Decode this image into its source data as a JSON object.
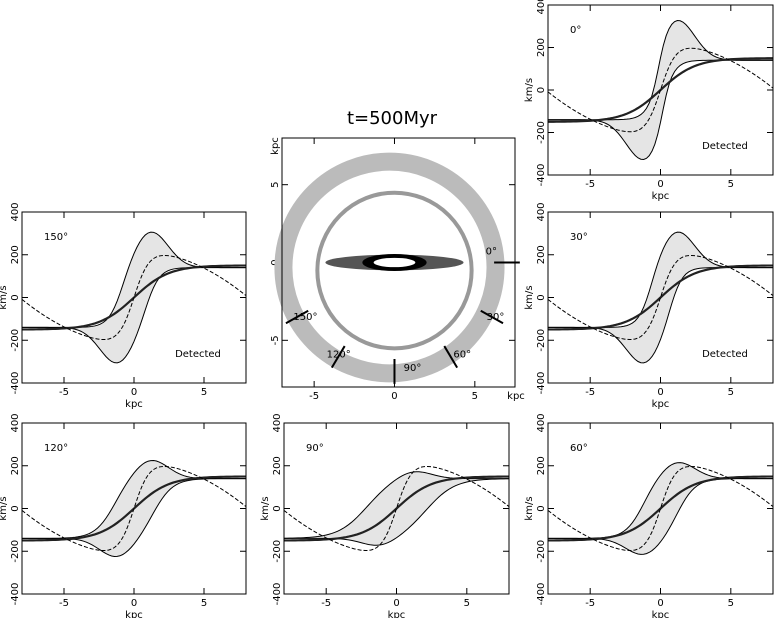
{
  "title": "t=500Myr",
  "chart_data": [
    {
      "type": "pv",
      "label": "0°",
      "note": "Detected",
      "xlabel": "kpc",
      "ylabel": "km/s",
      "xlim": [
        -8,
        8
      ],
      "ylim": [
        -400,
        400
      ],
      "xticks": [
        -5,
        0,
        5
      ],
      "yticks": [
        -400,
        -200,
        0,
        200,
        400
      ]
    },
    {
      "type": "pv",
      "label": "150°",
      "note": "Detected",
      "xlabel": "kpc",
      "ylabel": "km/s",
      "xlim": [
        -8,
        8
      ],
      "ylim": [
        -400,
        400
      ],
      "xticks": [
        -5,
        0,
        5
      ],
      "yticks": [
        -400,
        -200,
        0,
        200,
        400
      ]
    },
    {
      "type": "pv",
      "label": "30°",
      "note": "Detected",
      "xlabel": "kpc",
      "ylabel": "km/s",
      "xlim": [
        -8,
        8
      ],
      "ylim": [
        -400,
        400
      ],
      "xticks": [
        -5,
        0,
        5
      ],
      "yticks": [
        -400,
        -200,
        0,
        200,
        400
      ]
    },
    {
      "type": "pv",
      "label": "120°",
      "xlabel": "kpc",
      "ylabel": "km/s",
      "xlim": [
        -8,
        8
      ],
      "ylim": [
        -400,
        400
      ],
      "xticks": [
        -5,
        0,
        5
      ],
      "yticks": [
        -400,
        -200,
        0,
        200,
        400
      ]
    },
    {
      "type": "pv",
      "label": "90°",
      "xlabel": "kpc",
      "ylabel": "km/s",
      "xlim": [
        -8,
        8
      ],
      "ylim": [
        -400,
        400
      ],
      "xticks": [
        -5,
        0,
        5
      ],
      "yticks": [
        -400,
        -200,
        0,
        200,
        400
      ]
    },
    {
      "type": "pv",
      "label": "60°",
      "xlabel": "kpc",
      "ylabel": "km/s",
      "xlim": [
        -8,
        8
      ],
      "ylim": [
        -400,
        400
      ],
      "xticks": [
        -5,
        0,
        5
      ],
      "yticks": [
        -400,
        -200,
        0,
        200,
        400
      ]
    },
    {
      "type": "image",
      "xlabel": "kpc",
      "ylabel": "kpc",
      "xlim": [
        -7,
        7.5
      ],
      "ylim": [
        -8,
        8
      ],
      "xticks": [
        -5,
        0,
        5
      ],
      "yticks": [
        -5,
        0,
        5
      ],
      "markers": [
        "0°",
        "30°",
        "60°",
        "90°",
        "120°",
        "150°"
      ]
    }
  ]
}
